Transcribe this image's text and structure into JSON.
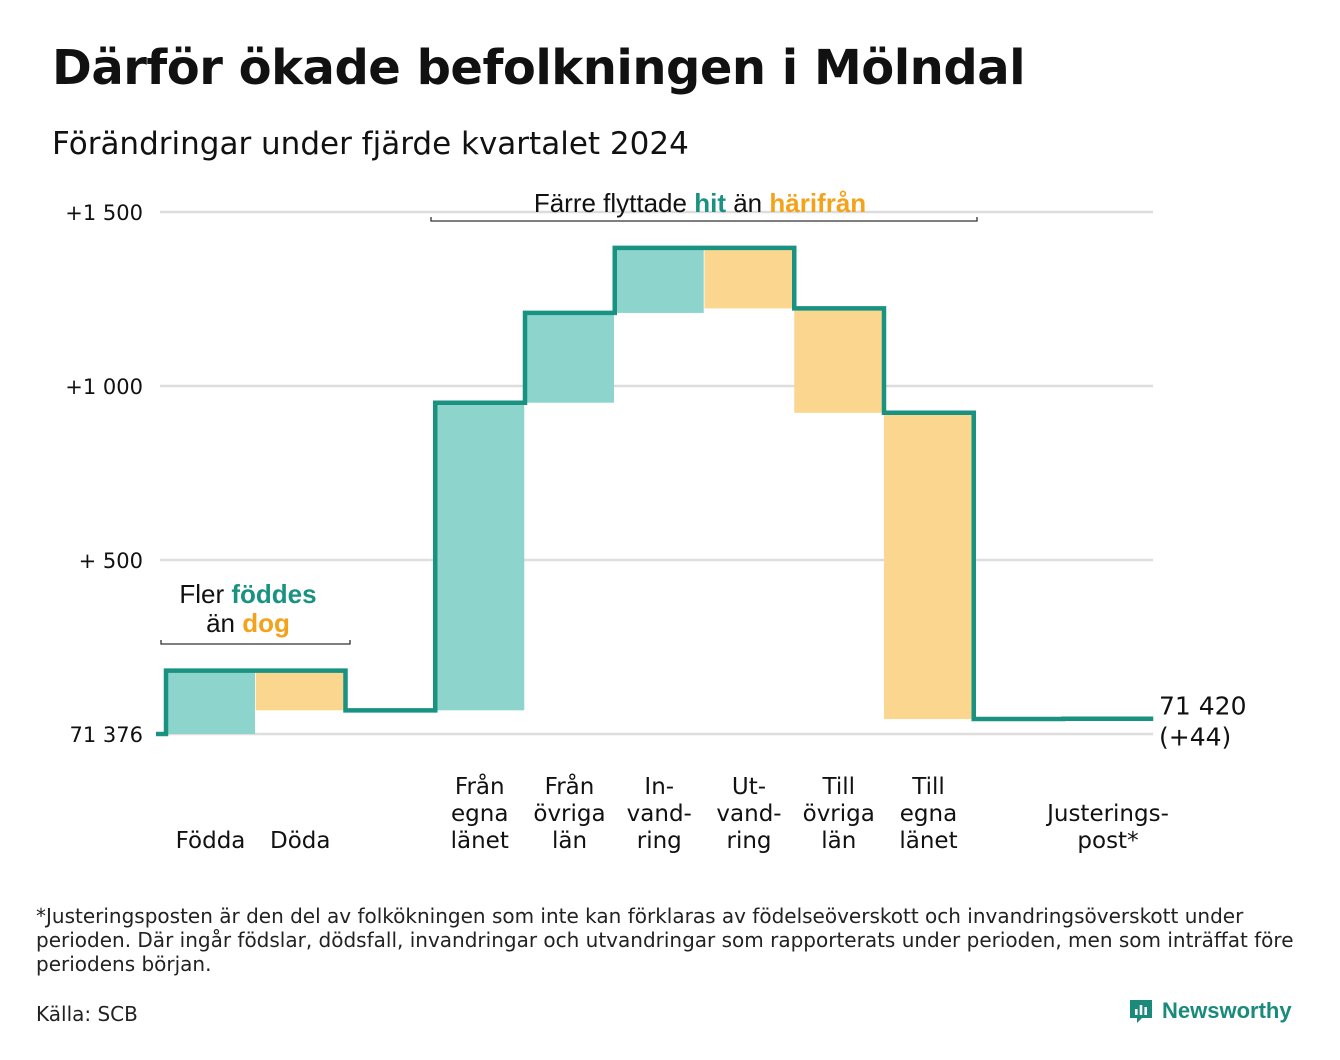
{
  "title": "Därför ökade befolkningen i Mölndal",
  "subtitle": "Förändringar under fjärde kvartalet 2024",
  "footnote": "*Justeringsposten är den del av folkökningen som inte kan förklaras av födelseöverskott och invandringsöverskott under perioden. Där ingår födslar, dödsfall, invandringar och utvandringar som rapporterats under perioden, men som inträffat före periodens början.",
  "source": "Källa: SCB",
  "logo_text": "Newsworthy",
  "colors": {
    "increase": "#8dd5cc",
    "decrease": "#fad68e",
    "line": "#1a9281",
    "highlight_in": "#1a9281",
    "highlight_out": "#f5a21b",
    "grid": "#dddddd"
  },
  "chart_data": {
    "type": "waterfall",
    "base_value": 71376,
    "ylim": [
      0,
      1500
    ],
    "y_ticks": [
      {
        "value": 0,
        "label": "71 376"
      },
      {
        "value": 500,
        "label": "+  500"
      },
      {
        "value": 1000,
        "label": "+1 000"
      },
      {
        "value": 1500,
        "label": "+1 500"
      }
    ],
    "categories": [
      {
        "label": [
          "Födda"
        ],
        "change": 182
      },
      {
        "label": [
          "Döda"
        ],
        "change": -114
      },
      {
        "label": [
          ""
        ],
        "change": 0
      },
      {
        "label": [
          "Från",
          "egna",
          "länet"
        ],
        "change": 884
      },
      {
        "label": [
          "Från",
          "övriga",
          "län"
        ],
        "change": 258
      },
      {
        "label": [
          "In-",
          "vand-",
          "ring"
        ],
        "change": 187
      },
      {
        "label": [
          "Ut-",
          "vand-",
          "ring"
        ],
        "change": -174
      },
      {
        "label": [
          "Till",
          "övriga",
          "län"
        ],
        "change": -300
      },
      {
        "label": [
          "Till",
          "egna",
          "länet"
        ],
        "change": -880
      },
      {
        "label": [
          ""
        ],
        "change": 0
      },
      {
        "label": [
          "Justerings-",
          "post*"
        ],
        "change": 1
      }
    ],
    "end_value": "71 420",
    "end_change": "(+44)",
    "annotations": {
      "births": {
        "prefix": "Fler",
        "highlight1": "föddes",
        "mid": "än",
        "highlight2": "dog"
      },
      "migration": {
        "prefix": "Färre flyttade",
        "highlight1": "hit",
        "mid": "än",
        "highlight2": "härifrån"
      }
    }
  }
}
